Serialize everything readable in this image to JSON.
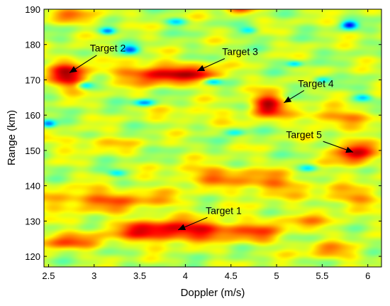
{
  "chart_data": {
    "type": "heatmap",
    "title": "",
    "xlabel": "Doppler (m/s)",
    "ylabel": "Range (km)",
    "xlim": [
      2.45,
      6.15
    ],
    "ylim": [
      117,
      190
    ],
    "xticks": [
      2.5,
      3,
      3.5,
      4,
      4.5,
      5,
      5.5,
      6
    ],
    "yticks": [
      120,
      130,
      140,
      150,
      160,
      170,
      180,
      190
    ],
    "xtick_labels": [
      "2.5",
      "3",
      "3.5",
      "4",
      "4.5",
      "5",
      "5.5",
      "6"
    ],
    "ytick_labels": [
      "120",
      "130",
      "140",
      "150",
      "160",
      "170",
      "180",
      "190"
    ],
    "colormap": "jet",
    "grid": false,
    "annotations": [
      {
        "label": "Target 1",
        "point": [
          3.92,
          127.5
        ],
        "text_at": [
          4.42,
          133.0
        ]
      },
      {
        "label": "Target 2",
        "point": [
          2.73,
          172.0
        ],
        "text_at": [
          3.15,
          179.0
        ]
      },
      {
        "label": "Target 3",
        "point": [
          4.13,
          172.5
        ],
        "text_at": [
          4.6,
          178.0
        ]
      },
      {
        "label": "Target 4",
        "point": [
          5.08,
          163.5
        ],
        "text_at": [
          5.43,
          169.0
        ]
      },
      {
        "label": "Target 5",
        "point": [
          5.84,
          149.5
        ],
        "text_at": [
          5.3,
          154.5
        ]
      }
    ],
    "hotspots": [
      {
        "x": 2.72,
        "y": 171.5,
        "sx": 0.14,
        "sy": 2.8,
        "v": 1.25
      },
      {
        "x": 3.75,
        "y": 171.6,
        "sx": 0.33,
        "sy": 2.0,
        "v": 1.2
      },
      {
        "x": 4.22,
        "y": 171.6,
        "sx": 0.13,
        "sy": 1.8,
        "v": 0.5
      },
      {
        "x": 4.9,
        "y": 162.8,
        "sx": 0.13,
        "sy": 2.4,
        "v": 1.25
      },
      {
        "x": 5.85,
        "y": 149.4,
        "sx": 0.15,
        "sy": 2.5,
        "v": 1.2
      },
      {
        "x": 3.7,
        "y": 127.2,
        "sx": 0.35,
        "sy": 2.2,
        "v": 1.15
      },
      {
        "x": 4.3,
        "y": 127.5,
        "sx": 0.25,
        "sy": 1.8,
        "v": 0.75
      },
      {
        "x": 4.8,
        "y": 126.5,
        "sx": 0.2,
        "sy": 2.0,
        "v": 0.6
      },
      {
        "x": 2.65,
        "y": 124.3,
        "sx": 0.28,
        "sy": 1.6,
        "v": 0.75
      },
      {
        "x": 3.1,
        "y": 136.0,
        "sx": 0.55,
        "sy": 2.2,
        "v": 0.7
      },
      {
        "x": 4.3,
        "y": 143.0,
        "sx": 0.3,
        "sy": 2.0,
        "v": 0.6
      },
      {
        "x": 4.95,
        "y": 140.5,
        "sx": 0.28,
        "sy": 2.4,
        "v": 0.6
      },
      {
        "x": 5.65,
        "y": 159.5,
        "sx": 0.3,
        "sy": 1.8,
        "v": 0.6
      },
      {
        "x": 5.85,
        "y": 137.0,
        "sx": 0.25,
        "sy": 2.0,
        "v": 0.55
      },
      {
        "x": 5.6,
        "y": 121.5,
        "sx": 0.22,
        "sy": 1.6,
        "v": 0.55
      },
      {
        "x": 2.8,
        "y": 188.0,
        "sx": 0.25,
        "sy": 1.4,
        "v": 0.55
      },
      {
        "x": 4.6,
        "y": 190.0,
        "sx": 0.12,
        "sy": 1.2,
        "v": 0.7
      },
      {
        "x": 3.0,
        "y": 152.0,
        "sx": 0.35,
        "sy": 1.5,
        "v": 0.35
      },
      {
        "x": 5.3,
        "y": 130.0,
        "sx": 0.3,
        "sy": 1.8,
        "v": 0.4
      },
      {
        "x": 4.1,
        "y": 160.0,
        "sx": 0.3,
        "sy": 1.5,
        "v": 0.3
      }
    ],
    "coldspots": [
      {
        "x": 5.8,
        "y": 185.5,
        "sx": 0.06,
        "sy": 0.8,
        "v": 1.4
      },
      {
        "x": 3.4,
        "y": 178.5,
        "sx": 0.07,
        "sy": 0.8,
        "v": 1.2
      },
      {
        "x": 3.15,
        "y": 183.8,
        "sx": 0.06,
        "sy": 0.7,
        "v": 1.0
      },
      {
        "x": 2.9,
        "y": 168.5,
        "sx": 0.06,
        "sy": 0.7,
        "v": 0.9
      },
      {
        "x": 4.3,
        "y": 169.5,
        "sx": 0.07,
        "sy": 0.7,
        "v": 1.0
      },
      {
        "x": 3.55,
        "y": 163.5,
        "sx": 0.08,
        "sy": 0.7,
        "v": 1.0
      },
      {
        "x": 2.5,
        "y": 157.5,
        "sx": 0.06,
        "sy": 0.8,
        "v": 1.2
      },
      {
        "x": 5.5,
        "y": 170.0,
        "sx": 0.07,
        "sy": 0.7,
        "v": 0.9
      },
      {
        "x": 5.2,
        "y": 174.5,
        "sx": 0.06,
        "sy": 0.6,
        "v": 0.8
      },
      {
        "x": 4.7,
        "y": 184.0,
        "sx": 0.07,
        "sy": 0.7,
        "v": 0.8
      },
      {
        "x": 5.95,
        "y": 165.0,
        "sx": 0.07,
        "sy": 0.7,
        "v": 0.8
      },
      {
        "x": 4.55,
        "y": 155.0,
        "sx": 0.08,
        "sy": 0.7,
        "v": 0.7
      },
      {
        "x": 3.25,
        "y": 143.5,
        "sx": 0.07,
        "sy": 0.7,
        "v": 0.7
      },
      {
        "x": 5.35,
        "y": 145.0,
        "sx": 0.07,
        "sy": 0.7,
        "v": 0.7
      },
      {
        "x": 3.9,
        "y": 186.5,
        "sx": 0.08,
        "sy": 0.7,
        "v": 0.7
      }
    ]
  }
}
